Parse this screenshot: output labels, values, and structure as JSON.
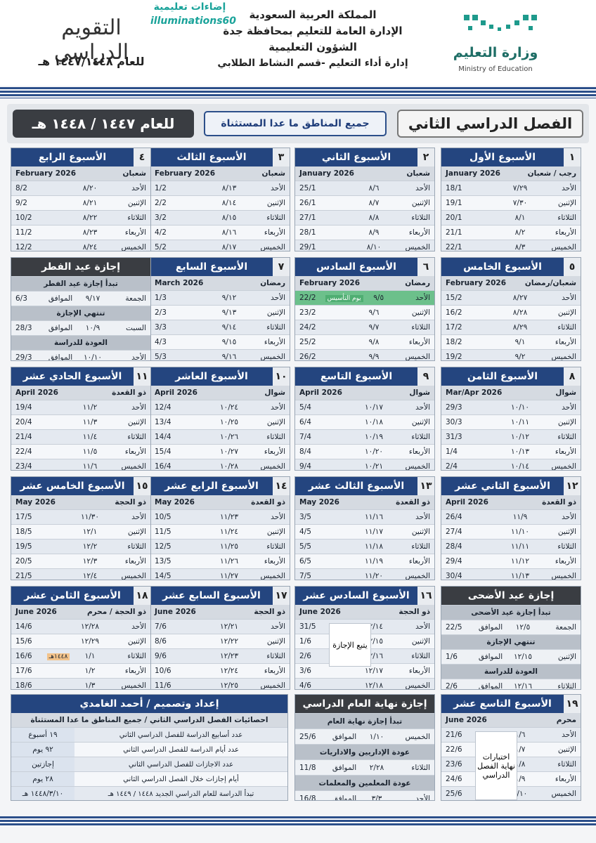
{
  "header": {
    "ministry": "وزارة التعليم",
    "ministry_en": "Ministry of Education",
    "lines": [
      "المملكة العربية السعودية",
      "الإدارة العامة للتعليم بمحافظة جدة",
      "الشؤون التعليمية",
      "إدارة أداء التعليم -قسم النشاط الطلابي"
    ],
    "calendar_title": "التقويم الدراسي",
    "calendar_year": "للعام ١٤٤٧/١٤٤٨ هـ",
    "watermark": "إضاءات تعليمية",
    "watermark_en": "illuminations60"
  },
  "title_bar": {
    "semester": "الفصل الدراسي الثاني",
    "regions": "جميع المناطق ما عدا المستثناة",
    "year": "للعام ١٤٤٧ / ١٤٤٨ هـ"
  },
  "day_names": [
    "الأحد",
    "الإثنين",
    "الثلاثاء",
    "الأربعاء",
    "الخميس"
  ],
  "equivalent_label": "الموافق",
  "weeks": [
    {
      "number": "١",
      "title": "الأسبوع الأول",
      "hijri_month": "رجب / شعبان",
      "gregorian_month": "January 2026",
      "days": [
        {
          "hijri": "٧/٢٩",
          "gregorian": "18/1"
        },
        {
          "hijri": "٧/٣٠",
          "gregorian": "19/1"
        },
        {
          "hijri": "٨/١",
          "gregorian": "20/1"
        },
        {
          "hijri": "٨/٢",
          "gregorian": "21/1"
        },
        {
          "hijri": "٨/٣",
          "gregorian": "22/1"
        }
      ]
    },
    {
      "number": "٢",
      "title": "الأسبوع الثاني",
      "hijri_month": "شعبان",
      "gregorian_month": "January 2026",
      "days": [
        {
          "hijri": "٨/٦",
          "gregorian": "25/1"
        },
        {
          "hijri": "٨/٧",
          "gregorian": "26/1"
        },
        {
          "hijri": "٨/٨",
          "gregorian": "27/1"
        },
        {
          "hijri": "٨/٩",
          "gregorian": "28/1"
        },
        {
          "hijri": "٨/١٠",
          "gregorian": "29/1"
        }
      ]
    },
    {
      "number": "٣",
      "title": "الأسبوع الثالث",
      "hijri_month": "شعبان",
      "gregorian_month": "February 2026",
      "days": [
        {
          "hijri": "٨/١٣",
          "gregorian": "1/2"
        },
        {
          "hijri": "٨/١٤",
          "gregorian": "2/2"
        },
        {
          "hijri": "٨/١٥",
          "gregorian": "3/2"
        },
        {
          "hijri": "٨/١٦",
          "gregorian": "4/2"
        },
        {
          "hijri": "٨/١٧",
          "gregorian": "5/2"
        }
      ]
    },
    {
      "number": "٤",
      "title": "الأسبوع الرابع",
      "hijri_month": "شعبان",
      "gregorian_month": "February 2026",
      "days": [
        {
          "hijri": "٨/٢٠",
          "gregorian": "8/2"
        },
        {
          "hijri": "٨/٢١",
          "gregorian": "9/2"
        },
        {
          "hijri": "٨/٢٢",
          "gregorian": "10/2"
        },
        {
          "hijri": "٨/٢٣",
          "gregorian": "11/2"
        },
        {
          "hijri": "٨/٢٤",
          "gregorian": "12/2"
        }
      ]
    },
    {
      "number": "٥",
      "title": "الأسبوع الخامس",
      "hijri_month": "شعبان/رمضان",
      "gregorian_month": "February 2026",
      "days": [
        {
          "hijri": "٨/٢٧",
          "gregorian": "15/2"
        },
        {
          "hijri": "٨/٢٨",
          "gregorian": "16/2"
        },
        {
          "hijri": "٨/٢٩",
          "gregorian": "17/2"
        },
        {
          "hijri": "٩/١",
          "gregorian": "18/2"
        },
        {
          "hijri": "٩/٢",
          "gregorian": "19/2"
        }
      ]
    },
    {
      "number": "٦",
      "title": "الأسبوع السادس",
      "hijri_month": "رمضان",
      "gregorian_month": "February 2026",
      "days": [
        {
          "hijri": "٩/٥",
          "gregorian": "22/2",
          "note": "يوم التأسيس"
        },
        {
          "hijri": "٩/٦",
          "gregorian": "23/2"
        },
        {
          "hijri": "٩/٧",
          "gregorian": "24/2"
        },
        {
          "hijri": "٩/٨",
          "gregorian": "25/2"
        },
        {
          "hijri": "٩/٩",
          "gregorian": "26/2"
        }
      ]
    },
    {
      "number": "٧",
      "title": "الأسبوع السابع",
      "hijri_month": "رمضان",
      "gregorian_month": "March 2026",
      "days": [
        {
          "hijri": "٩/١٢",
          "gregorian": "1/3"
        },
        {
          "hijri": "٩/١٣",
          "gregorian": "2/3"
        },
        {
          "hijri": "٩/١٤",
          "gregorian": "3/3"
        },
        {
          "hijri": "٩/١٥",
          "gregorian": "4/3"
        },
        {
          "hijri": "٩/١٦",
          "gregorian": "5/3"
        }
      ]
    },
    {
      "number": "٨",
      "title": "الأسبوع الثامن",
      "hijri_month": "شوال",
      "gregorian_month": "Mar/Apr 2026",
      "days": [
        {
          "hijri": "١٠/١٠",
          "gregorian": "29/3"
        },
        {
          "hijri": "١٠/١١",
          "gregorian": "30/3"
        },
        {
          "hijri": "١٠/١٢",
          "gregorian": "31/3"
        },
        {
          "hijri": "١٠/١٣",
          "gregorian": "1/4"
        },
        {
          "hijri": "١٠/١٤",
          "gregorian": "2/4"
        }
      ]
    },
    {
      "number": "٩",
      "title": "الأسبوع التاسع",
      "hijri_month": "شوال",
      "gregorian_month": "April 2026",
      "days": [
        {
          "hijri": "١٠/١٧",
          "gregorian": "5/4"
        },
        {
          "hijri": "١٠/١٨",
          "gregorian": "6/4"
        },
        {
          "hijri": "١٠/١٩",
          "gregorian": "7/4"
        },
        {
          "hijri": "١٠/٢٠",
          "gregorian": "8/4"
        },
        {
          "hijri": "١٠/٢١",
          "gregorian": "9/4"
        }
      ]
    },
    {
      "number": "١٠",
      "title": "الأسبوع العاشر",
      "hijri_month": "شوال",
      "gregorian_month": "April 2026",
      "days": [
        {
          "hijri": "١٠/٢٤",
          "gregorian": "12/4"
        },
        {
          "hijri": "١٠/٢٥",
          "gregorian": "13/4"
        },
        {
          "hijri": "١٠/٢٦",
          "gregorian": "14/4"
        },
        {
          "hijri": "١٠/٢٧",
          "gregorian": "15/4"
        },
        {
          "hijri": "١٠/٢٨",
          "gregorian": "16/4"
        }
      ]
    },
    {
      "number": "١١",
      "title": "الأسبوع الحادي عشر",
      "hijri_month": "ذو القعدة",
      "gregorian_month": "April 2026",
      "days": [
        {
          "hijri": "١١/٢",
          "gregorian": "19/4"
        },
        {
          "hijri": "١١/٣",
          "gregorian": "20/4"
        },
        {
          "hijri": "١١/٤",
          "gregorian": "21/4"
        },
        {
          "hijri": "١١/٥",
          "gregorian": "22/4"
        },
        {
          "hijri": "١١/٦",
          "gregorian": "23/4"
        }
      ]
    },
    {
      "number": "١٢",
      "title": "الأسبوع الثاني عشر",
      "hijri_month": "ذو القعدة",
      "gregorian_month": "April 2026",
      "days": [
        {
          "hijri": "١١/٩",
          "gregorian": "26/4"
        },
        {
          "hijri": "١١/١٠",
          "gregorian": "27/4"
        },
        {
          "hijri": "١١/١١",
          "gregorian": "28/4"
        },
        {
          "hijri": "١١/١٢",
          "gregorian": "29/4"
        },
        {
          "hijri": "١١/١٣",
          "gregorian": "30/4"
        }
      ]
    },
    {
      "number": "١٣",
      "title": "الأسبوع الثالث عشر",
      "hijri_month": "ذو القعدة",
      "gregorian_month": "May 2026",
      "days": [
        {
          "hijri": "١١/١٦",
          "gregorian": "3/5"
        },
        {
          "hijri": "١١/١٧",
          "gregorian": "4/5"
        },
        {
          "hijri": "١١/١٨",
          "gregorian": "5/5"
        },
        {
          "hijri": "١١/١٩",
          "gregorian": "6/5"
        },
        {
          "hijri": "١١/٢٠",
          "gregorian": "7/5"
        }
      ]
    },
    {
      "number": "١٤",
      "title": "الأسبوع الرابع عشر",
      "hijri_month": "ذو القعدة",
      "gregorian_month": "May 2026",
      "days": [
        {
          "hijri": "١١/٢٣",
          "gregorian": "10/5"
        },
        {
          "hijri": "١١/٢٤",
          "gregorian": "11/5"
        },
        {
          "hijri": "١١/٢٥",
          "gregorian": "12/5"
        },
        {
          "hijri": "١١/٢٦",
          "gregorian": "13/5"
        },
        {
          "hijri": "١١/٢٧",
          "gregorian": "14/5"
        }
      ]
    },
    {
      "number": "١٥",
      "title": "الأسبوع الخامس عشر",
      "hijri_month": "ذو الحجة",
      "gregorian_month": "May 2026",
      "days": [
        {
          "hijri": "١١/٣٠",
          "gregorian": "17/5"
        },
        {
          "hijri": "١٢/١",
          "gregorian": "18/5"
        },
        {
          "hijri": "١٢/٢",
          "gregorian": "19/5"
        },
        {
          "hijri": "١٢/٣",
          "gregorian": "20/5"
        },
        {
          "hijri": "١٢/٤",
          "gregorian": "21/5"
        }
      ]
    },
    {
      "number": "١٦",
      "title": "الأسبوع السادس عشر",
      "hijri_month": "ذو الحجة",
      "gregorian_month": "June 2026",
      "note": "يتبع الإجازة",
      "days": [
        {
          "hijri": "١٢/١٤",
          "gregorian": "31/5"
        },
        {
          "hijri": "١٢/١٥",
          "gregorian": "1/6"
        },
        {
          "hijri": "١٢/١٦",
          "gregorian": "2/6"
        },
        {
          "hijri": "١٢/١٧",
          "gregorian": "3/6"
        },
        {
          "hijri": "١٢/١٨",
          "gregorian": "4/6"
        }
      ]
    },
    {
      "number": "١٧",
      "title": "الأسبوع السابع عشر",
      "hijri_month": "ذو الحجة",
      "gregorian_month": "June 2026",
      "days": [
        {
          "hijri": "١٢/٢١",
          "gregorian": "7/6"
        },
        {
          "hijri": "١٢/٢٢",
          "gregorian": "8/6"
        },
        {
          "hijri": "١٢/٢٣",
          "gregorian": "9/6"
        },
        {
          "hijri": "١٢/٢٤",
          "gregorian": "10/6"
        },
        {
          "hijri": "١٢/٢٥",
          "gregorian": "11/6"
        }
      ]
    },
    {
      "number": "١٨",
      "title": "الأسبوع الثامن عشر",
      "hijri_month": "ذو الحجة / محرم",
      "gregorian_month": "June 2026",
      "days": [
        {
          "hijri": "١٢/٢٨",
          "gregorian": "14/6"
        },
        {
          "hijri": "١٢/٢٩",
          "gregorian": "15/6"
        },
        {
          "hijri": "١/١",
          "gregorian": "16/6",
          "note": "١٤٤٨هـ"
        },
        {
          "hijri": "١/٢",
          "gregorian": "17/6"
        },
        {
          "hijri": "١/٣",
          "gregorian": "18/6"
        }
      ]
    },
    {
      "number": "١٩",
      "title": "الأسبوع التاسع عشر",
      "hijri_month": "محرم",
      "gregorian_month": "June 2026",
      "note": "اختبارات نهاية الفصل الدراسي",
      "days": [
        {
          "hijri": "١/٦",
          "gregorian": "21/6"
        },
        {
          "hijri": "١/٧",
          "gregorian": "22/6"
        },
        {
          "hijri": "١/٨",
          "gregorian": "23/6"
        },
        {
          "hijri": "١/٩",
          "gregorian": "24/6"
        },
        {
          "hijri": "١/١٠",
          "gregorian": "25/6"
        }
      ]
    }
  ],
  "holidays": [
    {
      "title": "إجازة عيد الفطر",
      "rows": [
        {
          "label": "تبدأ إجازة عيد الفطر"
        },
        {
          "day": "الجمعة",
          "hijri": "٩/١٧",
          "gregorian": "6/3"
        },
        {
          "label": "تنتهي الإجازة"
        },
        {
          "day": "السبت",
          "hijri": "١٠/٩",
          "gregorian": "28/3"
        },
        {
          "label": "العودة للدراسة"
        },
        {
          "day": "الأحد",
          "hijri": "١٠/١٠",
          "gregorian": "29/3"
        }
      ]
    },
    {
      "title": "إجازة عيد الأضحى",
      "rows": [
        {
          "label": "تبدأ إجازة عيد الأضحى"
        },
        {
          "day": "الجمعة",
          "hijri": "١٢/٥",
          "gregorian": "22/5"
        },
        {
          "label": "تنتهي الإجازة"
        },
        {
          "day": "الإثنين",
          "hijri": "١٢/١٥",
          "gregorian": "1/6"
        },
        {
          "label": "العودة للدراسة"
        },
        {
          "day": "الثلاثاء",
          "hijri": "١٢/١٦",
          "gregorian": "2/6"
        }
      ]
    },
    {
      "title": "إجازة نهاية العام الدراسي",
      "rows": [
        {
          "label": "تبدأ إجازة نهاية العام"
        },
        {
          "day": "الخميس",
          "hijri": "١/١٠",
          "gregorian": "25/6"
        },
        {
          "label": "عودة الإداريين والاداريات"
        },
        {
          "day": "الثلاثاء",
          "hijri": "٢/٢٨",
          "gregorian": "11/8"
        },
        {
          "label": "عودة المعلمين والمعلمات"
        },
        {
          "day": "الأحد",
          "hijri": "٣/٣",
          "gregorian": "16/8"
        }
      ]
    }
  ],
  "credits": {
    "title": "إعداد وتصميم / أحمد الغامدي",
    "subtitle": "احصائيات الفصل الدراسي الثاني / جميع المناطق ما عدا المستثناة",
    "stats": [
      {
        "label": "عدد أسابيع الدراسة للفصل الدراسي الثاني",
        "value": "١٩ أسبوع"
      },
      {
        "label": "عدد أيام الدراسة للفصل الدراسي الثاني",
        "value": "٩٢ يوم"
      },
      {
        "label": "عدد الاجازات للفصل الدراسي الثاني",
        "value": "إجازتين"
      },
      {
        "label": "أيام إجازات خلال الفصل الدراسي الثاني",
        "value": "٢٨ يوم"
      },
      {
        "label": "تبدأ الدراسة للعام الدراسي الجديد ١٤٤٨ / ١٤٤٩ هـ",
        "value": "١٤٤٨/٣/١٠ هـ"
      }
    ]
  }
}
